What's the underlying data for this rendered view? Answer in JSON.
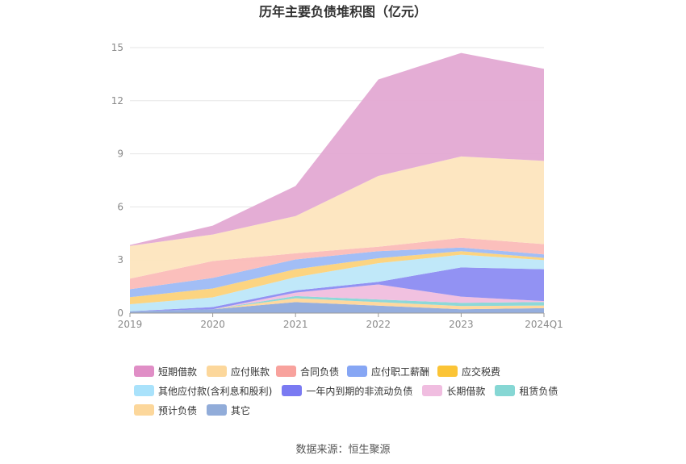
{
  "chart_data": {
    "type": "area",
    "stacked": true,
    "title": "历年主要负债堆积图（亿元）",
    "xlabel": "",
    "ylabel": "",
    "categories": [
      "2019",
      "2020",
      "2021",
      "2022",
      "2023",
      "2024Q1"
    ],
    "ylim": [
      0,
      15
    ],
    "yticks": [
      0,
      3,
      6,
      9,
      12,
      15
    ],
    "grid": true,
    "legend_position": "bottom",
    "series": [
      {
        "name": "其它",
        "color": "#8faadc",
        "values": [
          0.1,
          0.22,
          0.62,
          0.42,
          0.22,
          0.28
        ]
      },
      {
        "name": "预计负债",
        "color": "#ffd699",
        "values": [
          0.0,
          0.0,
          0.22,
          0.2,
          0.18,
          0.15
        ]
      },
      {
        "name": "租赁负债",
        "color": "#87d6d6",
        "values": [
          0.0,
          0.0,
          0.12,
          0.15,
          0.18,
          0.2
        ]
      },
      {
        "name": "长期借款",
        "color": "#f0bede",
        "values": [
          0.0,
          0.0,
          0.2,
          0.85,
          0.35,
          0.05
        ]
      },
      {
        "name": "一年内到期的非流动负债",
        "color": "#8c8cf2",
        "values": [
          0.0,
          0.12,
          0.12,
          0.15,
          1.65,
          1.8
        ]
      },
      {
        "name": "其他应付款(含利息和股利)",
        "color": "#bde7f9",
        "values": [
          0.4,
          0.55,
          0.75,
          1.05,
          0.72,
          0.52
        ]
      },
      {
        "name": "应交税费",
        "color": "#fcd27a",
        "values": [
          0.4,
          0.5,
          0.45,
          0.28,
          0.2,
          0.12
        ]
      },
      {
        "name": "应付职工薪酬",
        "color": "#9dbbf5",
        "values": [
          0.45,
          0.6,
          0.55,
          0.4,
          0.2,
          0.2
        ]
      },
      {
        "name": "合同负债",
        "color": "#fbbcb8",
        "values": [
          0.6,
          0.95,
          0.35,
          0.25,
          0.55,
          0.58
        ]
      },
      {
        "name": "应付账款",
        "color": "#fde5be",
        "values": [
          1.85,
          1.5,
          2.1,
          4.0,
          4.6,
          4.7
        ]
      },
      {
        "name": "短期借款",
        "color": "#e3a9d3",
        "values": [
          0.05,
          0.5,
          1.7,
          5.45,
          5.85,
          5.2
        ]
      }
    ]
  },
  "legend": {
    "rows": [
      [
        {
          "label": "短期借款",
          "color": "#e08ec6"
        },
        {
          "label": "应付账款",
          "color": "#fcd79b"
        },
        {
          "label": "合同负债",
          "color": "#f8a29d"
        },
        {
          "label": "应付职工薪酬",
          "color": "#86a6f4"
        },
        {
          "label": "应交税费",
          "color": "#fbc436"
        }
      ],
      [
        {
          "label": "其他应付款(含利息和股利)",
          "color": "#a9e2fb"
        },
        {
          "label": "一年内到期的非流动负债",
          "color": "#7a7af2"
        },
        {
          "label": "长期借款",
          "color": "#f0bde0"
        },
        {
          "label": "租赁负债",
          "color": "#86d7d4"
        }
      ],
      [
        {
          "label": "预计负债",
          "color": "#fcd79b"
        },
        {
          "label": "其它",
          "color": "#91acd9"
        }
      ]
    ]
  },
  "source": "数据来源：恒生聚源"
}
